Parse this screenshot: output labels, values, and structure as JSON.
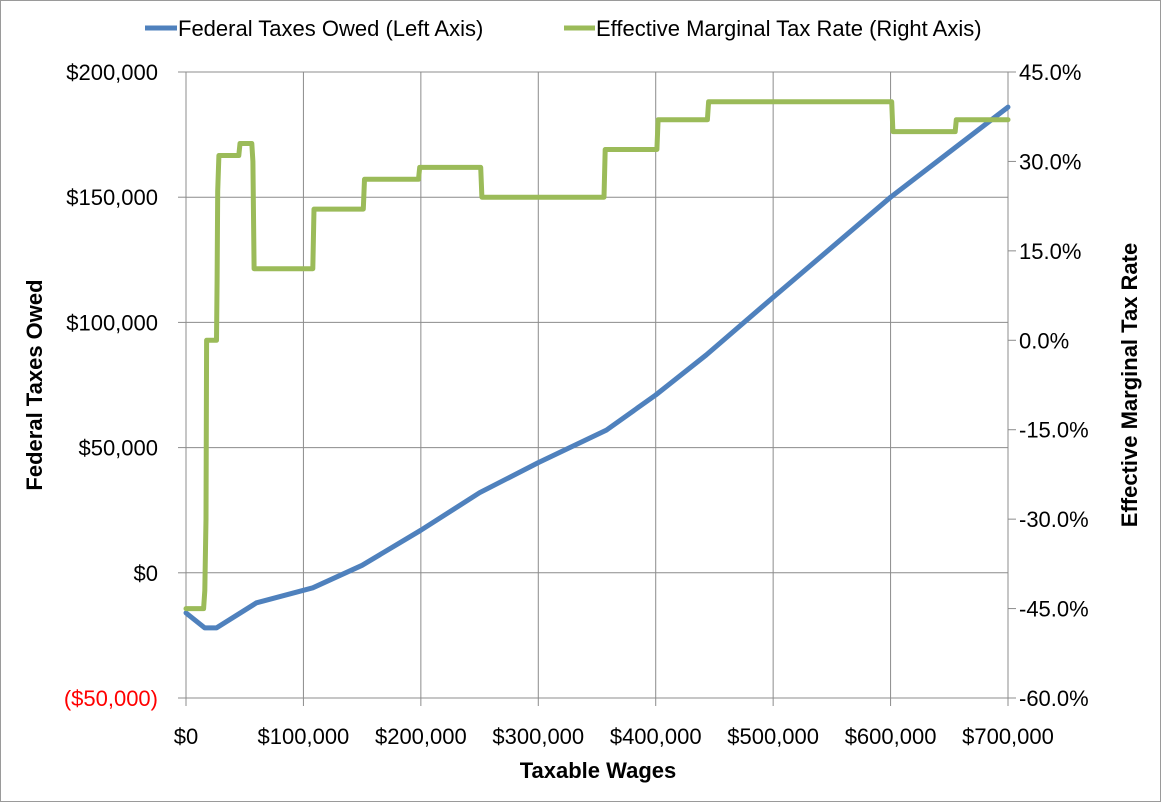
{
  "chart_data": {
    "type": "line",
    "xlabel": "Taxable Wages",
    "ylabel_left": "Federal Taxes Owed",
    "ylabel_right": "Effective Marginal Tax Rate",
    "xlim": [
      0,
      700000
    ],
    "ylim_left": [
      -50000,
      200000
    ],
    "ylim_right": [
      -60,
      45
    ],
    "grid": true,
    "legend_position": "top",
    "x_ticks": [
      {
        "v": 0,
        "label": "$0"
      },
      {
        "v": 100000,
        "label": "$100,000"
      },
      {
        "v": 200000,
        "label": "$200,000"
      },
      {
        "v": 300000,
        "label": "$300,000"
      },
      {
        "v": 400000,
        "label": "$400,000"
      },
      {
        "v": 500000,
        "label": "$500,000"
      },
      {
        "v": 600000,
        "label": "$600,000"
      },
      {
        "v": 700000,
        "label": "$700,000"
      }
    ],
    "y_left_ticks": [
      {
        "v": -50000,
        "label": "($50,000)",
        "color": "#ff0000"
      },
      {
        "v": 0,
        "label": "$0",
        "color": "#000000"
      },
      {
        "v": 50000,
        "label": "$50,000",
        "color": "#000000"
      },
      {
        "v": 100000,
        "label": "$100,000",
        "color": "#000000"
      },
      {
        "v": 150000,
        "label": "$150,000",
        "color": "#000000"
      },
      {
        "v": 200000,
        "label": "$200,000",
        "color": "#000000"
      }
    ],
    "y_right_ticks": [
      {
        "v": -60,
        "label": "-60.0%"
      },
      {
        "v": -45,
        "label": "-45.0%"
      },
      {
        "v": -30,
        "label": "-30.0%"
      },
      {
        "v": -15,
        "label": "-15.0%"
      },
      {
        "v": 0,
        "label": "0.0%"
      },
      {
        "v": 15,
        "label": "15.0%"
      },
      {
        "v": 30,
        "label": "30.0%"
      },
      {
        "v": 45,
        "label": "45.0%"
      }
    ],
    "series": [
      {
        "name": "Federal Taxes Owed (Left Axis)",
        "axis": "left",
        "color": "#4f81bd",
        "x": [
          0,
          16000,
          26000,
          60000,
          108000,
          150000,
          200000,
          250000,
          300000,
          358000,
          400000,
          443000,
          500000,
          600000,
          650000,
          700000
        ],
        "y": [
          -16000,
          -22000,
          -22000,
          -12000,
          -6000,
          3000,
          17000,
          32000,
          44000,
          57000,
          71000,
          87000,
          110000,
          150000,
          168000,
          186000
        ]
      },
      {
        "name": "Effective Marginal Tax Rate (Right Axis)",
        "axis": "right",
        "color": "#9bbb59",
        "x": [
          0,
          15000,
          16000,
          17000,
          17500,
          26000,
          26500,
          27000,
          28000,
          45000,
          46000,
          56000,
          57000,
          58000,
          108000,
          109000,
          151000,
          152000,
          198000,
          199000,
          251000,
          252000,
          356000,
          357000,
          401000,
          402000,
          444000,
          445000,
          601000,
          602000,
          655000,
          656000,
          700000
        ],
        "y": [
          -45,
          -45,
          -42,
          -30,
          0,
          0,
          10,
          25,
          31,
          31,
          33,
          33,
          30,
          12,
          12,
          22,
          22,
          27,
          27,
          29,
          29,
          24,
          24,
          32,
          32,
          37,
          37,
          40,
          40,
          35,
          35,
          37,
          37
        ]
      }
    ]
  }
}
